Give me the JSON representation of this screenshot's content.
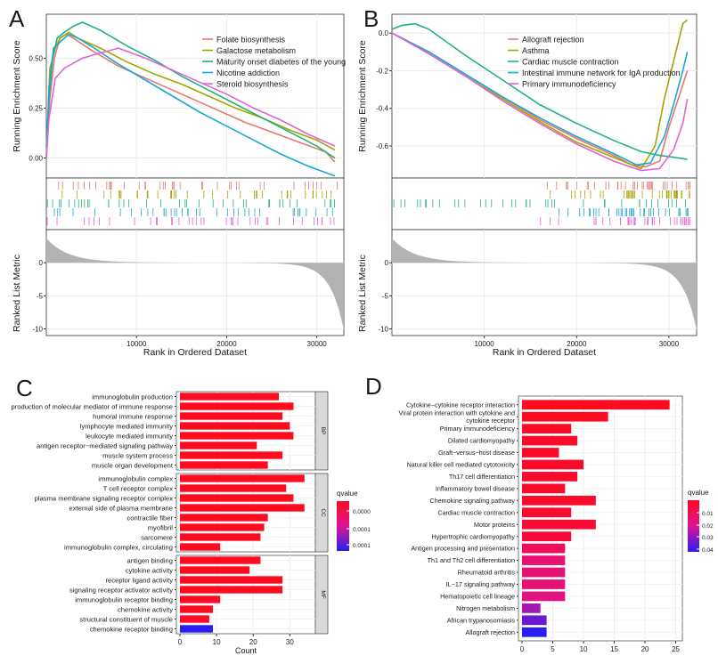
{
  "chart_data": [
    {
      "panel": "A",
      "type": "line",
      "title": "",
      "ylabel_top": "Running Enrichment Score",
      "ylabel_bottom": "Ranked List Metric",
      "xlabel": "Rank in Ordered Dataset",
      "x_ticks": [
        "10000",
        "20000",
        "30000"
      ],
      "x_range": [
        0,
        33000
      ],
      "y_ticks_top": [
        "0.00",
        "0.25",
        "0.50"
      ],
      "ylim_top": [
        -0.1,
        0.72
      ],
      "y_ticks_bottom": [
        "0",
        "-5",
        "-10"
      ],
      "ylim_bottom": [
        -11,
        5
      ],
      "legend_position": "top-right",
      "series": [
        {
          "name": "Folate biosynthesis",
          "color": "#e6786f",
          "x": [
            0,
            400,
            900,
            1500,
            2200,
            3000,
            5000,
            8000,
            10000,
            13000,
            16000,
            19000,
            22000,
            25000,
            28000,
            31000,
            32000
          ],
          "y": [
            0,
            0.3,
            0.5,
            0.6,
            0.62,
            0.6,
            0.54,
            0.46,
            0.42,
            0.36,
            0.3,
            0.24,
            0.18,
            0.13,
            0.08,
            0.03,
            -0.02
          ]
        },
        {
          "name": "Galactose metabolism",
          "color": "#a3a500",
          "x": [
            0,
            400,
            1000,
            1500,
            2500,
            3500,
            6000,
            9000,
            12000,
            15000,
            18000,
            21000,
            24000,
            27000,
            30000,
            32000
          ],
          "y": [
            0,
            0.45,
            0.55,
            0.6,
            0.63,
            0.6,
            0.55,
            0.48,
            0.42,
            0.37,
            0.31,
            0.25,
            0.2,
            0.14,
            0.09,
            0.04
          ]
        },
        {
          "name": "Maturity onset diabetes of the young",
          "color": "#1eb37a",
          "x": [
            0,
            300,
            700,
            1200,
            2000,
            3000,
            4000,
            6000,
            9000,
            12000,
            15000,
            18000,
            21000,
            24000,
            27000,
            30000,
            32000
          ],
          "y": [
            0.05,
            0.3,
            0.5,
            0.6,
            0.63,
            0.66,
            0.68,
            0.64,
            0.56,
            0.49,
            0.41,
            0.34,
            0.27,
            0.2,
            0.13,
            0.06,
            0.0
          ]
        },
        {
          "name": "Nicotine addiction",
          "color": "#1ba7d6",
          "x": [
            0,
            300,
            800,
            1500,
            2500,
            3500,
            5000,
            8000,
            11000,
            14000,
            17000,
            20000,
            23000,
            26000,
            29000,
            32000
          ],
          "y": [
            0,
            0.35,
            0.55,
            0.58,
            0.62,
            0.6,
            0.56,
            0.47,
            0.39,
            0.31,
            0.23,
            0.16,
            0.09,
            0.02,
            -0.04,
            -0.09
          ]
        },
        {
          "name": "Steroid biosynthesis",
          "color": "#e064d6",
          "x": [
            0,
            300,
            1000,
            2000,
            4000,
            5500,
            8000,
            11000,
            14000,
            17000,
            20000,
            23000,
            26000,
            29000,
            32000
          ],
          "y": [
            0,
            0.2,
            0.4,
            0.45,
            0.5,
            0.52,
            0.55,
            0.5,
            0.44,
            0.38,
            0.32,
            0.25,
            0.19,
            0.12,
            0.06
          ]
        }
      ]
    },
    {
      "panel": "B",
      "type": "line",
      "title": "",
      "ylabel_top": "Running Enrichment Score",
      "ylabel_bottom": "Ranked List Metric",
      "xlabel": "Rank in Ordered Dataset",
      "x_ticks": [
        "10000",
        "20000",
        "30000"
      ],
      "x_range": [
        0,
        33000
      ],
      "y_ticks_top": [
        "0.0",
        "-0.2",
        "-0.4",
        "-0.6"
      ],
      "ylim_top": [
        -0.77,
        0.1
      ],
      "y_ticks_bottom": [
        "0",
        "-5",
        "-10"
      ],
      "ylim_bottom": [
        -11,
        5
      ],
      "legend_position": "top-right",
      "series": [
        {
          "name": "Allograft rejection",
          "color": "#e6786f",
          "x": [
            0,
            4000,
            8000,
            12000,
            16000,
            20000,
            24000,
            26000,
            27500,
            29000,
            30000,
            31000,
            32000
          ],
          "y": [
            0,
            -0.1,
            -0.22,
            -0.34,
            -0.46,
            -0.56,
            -0.65,
            -0.7,
            -0.71,
            -0.68,
            -0.5,
            -0.35,
            -0.2
          ]
        },
        {
          "name": "Asthma",
          "color": "#a3a500",
          "x": [
            0,
            4000,
            8000,
            12000,
            16000,
            20000,
            24000,
            26000,
            27000,
            28500,
            29500,
            30500,
            31500,
            32000
          ],
          "y": [
            0,
            -0.11,
            -0.23,
            -0.35,
            -0.47,
            -0.58,
            -0.66,
            -0.7,
            -0.72,
            -0.6,
            -0.35,
            -0.15,
            0.05,
            0.07
          ]
        },
        {
          "name": "Cardiac muscle contraction",
          "color": "#1eb37a",
          "x": [
            0,
            1000,
            2500,
            4000,
            8000,
            12000,
            16000,
            20000,
            24000,
            27000,
            29000,
            30500,
            32000
          ],
          "y": [
            0.02,
            0.04,
            0.05,
            0.02,
            -0.12,
            -0.25,
            -0.38,
            -0.48,
            -0.57,
            -0.63,
            -0.65,
            -0.66,
            -0.67
          ]
        },
        {
          "name": "Intestinal immune network for IgA production",
          "color": "#1ba7d6",
          "x": [
            0,
            4000,
            8000,
            12000,
            16000,
            20000,
            24000,
            26500,
            28000,
            29500,
            30500,
            31500,
            32000
          ],
          "y": [
            0,
            -0.1,
            -0.22,
            -0.34,
            -0.45,
            -0.55,
            -0.64,
            -0.7,
            -0.69,
            -0.55,
            -0.38,
            -0.2,
            -0.1
          ]
        },
        {
          "name": "Primary immunodeficiency",
          "color": "#e064d6",
          "x": [
            0,
            4000,
            8000,
            12000,
            16000,
            20000,
            24000,
            27000,
            29000,
            30500,
            31500,
            32000
          ],
          "y": [
            0,
            -0.11,
            -0.23,
            -0.36,
            -0.48,
            -0.59,
            -0.68,
            -0.73,
            -0.72,
            -0.62,
            -0.48,
            -0.35
          ]
        }
      ]
    },
    {
      "panel": "C",
      "type": "bar",
      "orientation": "horizontal",
      "xlabel": "Count",
      "x_ticks": [
        "0",
        "10",
        "20",
        "30"
      ],
      "xlim": [
        0,
        36
      ],
      "legend_title": "qvalue",
      "legend_labels": [
        "0.0000",
        "0.0001",
        "0.0001"
      ],
      "groups": [
        {
          "name": "BP",
          "categories": [
            "immunoglobulin production",
            "production of molecular mediator of immune response",
            "humoral immune response",
            "lymphocyte mediated immunity",
            "leukocyte mediated immunity",
            "antigen receptor−mediated signaling pathway",
            "muscle system process",
            "muscle organ development"
          ],
          "values": [
            27,
            31,
            28,
            30,
            31,
            21,
            28,
            24
          ],
          "qvalue_fraction": [
            0,
            0,
            0,
            0,
            0,
            0,
            0,
            0
          ]
        },
        {
          "name": "CC",
          "categories": [
            "immunoglobulin complex",
            "T cell receptor complex",
            "plasma membrane signaling receptor complex",
            "external side of plasma membrane",
            "contractile fiber",
            "myofibril",
            "sarcomere",
            "immunoglobulin complex, circulating"
          ],
          "values": [
            34,
            29,
            31,
            34,
            24,
            23,
            22,
            11
          ],
          "qvalue_fraction": [
            0,
            0,
            0,
            0,
            0,
            0,
            0,
            0.02
          ]
        },
        {
          "name": "MF",
          "categories": [
            "antigen binding",
            "cytokine activity",
            "receptor ligand activity",
            "signaling receptor activator activity",
            "immunoglobulin receptor binding",
            "chemokine activity",
            "structural constituent of muscle",
            "chemokine receptor binding"
          ],
          "values": [
            22,
            19,
            28,
            28,
            11,
            9,
            8,
            9
          ],
          "qvalue_fraction": [
            0,
            0,
            0,
            0,
            0.02,
            0,
            0.05,
            1
          ]
        }
      ]
    },
    {
      "panel": "D",
      "type": "bar",
      "orientation": "horizontal",
      "xlabel": "",
      "x_ticks": [
        "0",
        "5",
        "10",
        "15",
        "20",
        "25"
      ],
      "xlim": [
        0,
        25.5
      ],
      "legend_title": "qvalue",
      "legend_labels": [
        "0.01",
        "0.02",
        "0.03",
        "0.04"
      ],
      "categories": [
        "Cytokine−cytokine receptor interaction",
        "Viral protein interaction with cytokine and cytokine receptor",
        "Primary immunodeficiency",
        "Dilated cardiomyopathy",
        "Graft−versus−host disease",
        "Natural killer cell mediated cytotoxicity",
        "Th17 cell differentiation",
        "Inflammatory bowel disease",
        "Chemokine signaling pathway",
        "Cardiac muscle contraction",
        "Motor proteins",
        "Hypertrophic cardiomyopathy",
        "Antigen processing and presentation",
        "Th1 and Th2 cell differentiation",
        "Rheumatoid arthritis",
        "IL−17 signaling pathway",
        "Hematopoietic cell lineage",
        "Nitrogen metabolism",
        "African trypanosomiasis",
        "Allograft rejection"
      ],
      "values": [
        24,
        14,
        8,
        9,
        6,
        10,
        9,
        7,
        12,
        8,
        12,
        8,
        7,
        7,
        7,
        7,
        7,
        3,
        4,
        4
      ],
      "qvalue": [
        0.001,
        0.001,
        0.002,
        0.003,
        0.003,
        0.003,
        0.004,
        0.004,
        0.004,
        0.004,
        0.005,
        0.006,
        0.012,
        0.016,
        0.017,
        0.017,
        0.019,
        0.03,
        0.037,
        0.045
      ]
    }
  ],
  "panel_labels": {
    "A": "A",
    "B": "B",
    "C": "C",
    "D": "D"
  }
}
